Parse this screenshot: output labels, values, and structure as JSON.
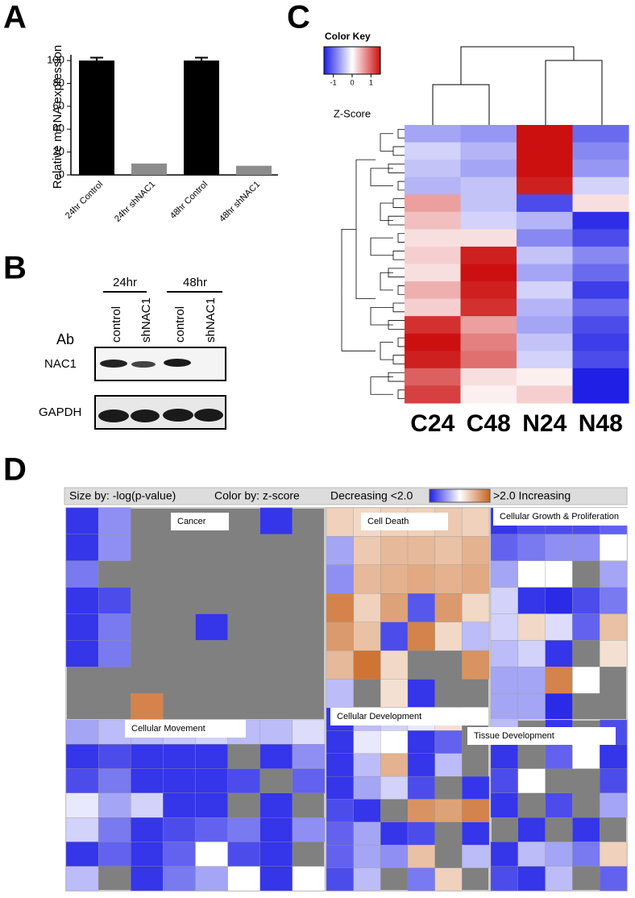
{
  "panel_labels": [
    "A",
    "B",
    "C",
    "D"
  ],
  "blot": {
    "times": [
      "24hr",
      "48hr"
    ],
    "lanes": [
      "control",
      "shNAC1",
      "control",
      "shNAC1"
    ],
    "antibody_header": "Ab",
    "proteins": [
      "NAC1",
      "GAPDH"
    ]
  },
  "chart_data": [
    {
      "type": "bar",
      "ylabel": "Relative mRNA expression",
      "categories": [
        "24hr Control",
        "24hr shNAC1",
        "48hr Control",
        "48hr shNAC1"
      ],
      "values": [
        100,
        10,
        100,
        8
      ],
      "errors": [
        2.5,
        null,
        2.5,
        null
      ],
      "colors": [
        "#000000",
        "#8c8c8c",
        "#000000",
        "#8c8c8c"
      ],
      "ylim": [
        0,
        105
      ],
      "yticks": [
        0,
        20,
        40,
        60,
        80,
        100
      ]
    },
    {
      "type": "heatmap",
      "columns": [
        "C24",
        "C48",
        "N24",
        "N48"
      ],
      "values": [
        [
          -0.6,
          -0.7,
          1.5,
          -1.0
        ],
        [
          -0.3,
          -0.5,
          1.5,
          -0.8
        ],
        [
          -0.4,
          -0.6,
          1.5,
          -0.7
        ],
        [
          -0.5,
          -0.4,
          1.4,
          -0.3
        ],
        [
          0.6,
          -0.4,
          -1.2,
          0.2
        ],
        [
          0.4,
          -0.3,
          -0.5,
          -1.4
        ],
        [
          0.2,
          0.2,
          -0.8,
          -1.2
        ],
        [
          0.3,
          1.4,
          -0.4,
          -0.8
        ],
        [
          0.2,
          1.5,
          -0.6,
          -1.0
        ],
        [
          0.5,
          1.4,
          -0.3,
          -1.3
        ],
        [
          0.3,
          1.3,
          -0.5,
          -1.0
        ],
        [
          1.3,
          0.6,
          -0.6,
          -1.2
        ],
        [
          1.5,
          0.8,
          -0.4,
          -1.3
        ],
        [
          1.4,
          0.9,
          -0.3,
          -1.2
        ],
        [
          1.0,
          0.2,
          0.1,
          -1.5
        ],
        [
          1.2,
          0.1,
          0.3,
          -1.5
        ]
      ],
      "zlim": [
        -1.5,
        1.5
      ],
      "colors": [
        "#1f1fe6",
        "#ffffff",
        "#cc1010"
      ],
      "key_title": "Color Key",
      "key_ticks": [
        -1,
        0,
        1
      ],
      "key_label": "Z-Score"
    },
    {
      "type": "treemap",
      "size_by": "Size by: -log(p-value)",
      "color_by": "Color by: z-score",
      "legend_low": "Decreasing <2.0",
      "legend_high": ">2.0 Increasing",
      "zlim": [
        -2,
        2
      ],
      "colors": [
        "#1f1fe6",
        "#ffffff",
        "#c8641e"
      ],
      "null_color": "#808080",
      "groups": [
        {
          "name": "Cancer",
          "z": [
            [
              -1.8,
              -1.0,
              null,
              null,
              null,
              null,
              -1.8,
              null
            ],
            [
              -1.8,
              -1.0,
              null,
              null,
              null,
              null,
              null,
              null
            ],
            [
              -1.2,
              null,
              null,
              null,
              null,
              null,
              null,
              null
            ],
            [
              -1.8,
              -1.6,
              null,
              null,
              null,
              null,
              null,
              null
            ],
            [
              -1.8,
              -1.2,
              null,
              null,
              -1.8,
              null,
              null,
              null
            ],
            [
              -1.8,
              -1.2,
              null,
              null,
              null,
              null,
              null,
              null
            ],
            [
              null,
              null,
              null,
              null,
              null,
              null,
              null,
              null
            ],
            [
              null,
              null,
              1.6,
              null,
              null,
              null,
              null,
              null
            ]
          ]
        },
        {
          "name": "Cell Death",
          "z": [
            [
              0.6,
              0.5,
              0.6,
              0.6,
              0.7,
              0.6
            ],
            [
              -0.8,
              0.7,
              0.9,
              0.9,
              0.8,
              1.0
            ],
            [
              -1.0,
              0.9,
              1.0,
              1.1,
              1.0,
              1.1
            ],
            [
              1.6,
              0.6,
              1.2,
              -1.5,
              1.3,
              0.5
            ],
            [
              1.3,
              0.8,
              -1.6,
              1.6,
              0.5,
              -0.6
            ],
            [
              0.9,
              1.8,
              0.5,
              null,
              null,
              1.4
            ],
            [
              -0.6,
              null,
              0.4,
              -1.8,
              null,
              null
            ]
          ]
        },
        {
          "name": "Cellular Growth & Proliferation",
          "z": [
            [
              -1.8,
              -1.6,
              -1.6,
              -1.6,
              -1.4
            ],
            [
              -1.4,
              -1.2,
              -1.0,
              -1.0,
              0.0
            ],
            [
              -0.8,
              0.0,
              0.0,
              null,
              -0.8
            ],
            [
              -0.4,
              -1.8,
              -1.9,
              -1.6,
              -1.2
            ],
            [
              -0.4,
              0.5,
              -0.3,
              -1.4,
              0.8
            ],
            [
              -0.6,
              -0.4,
              -1.8,
              null,
              0.4
            ],
            [
              -0.8,
              -0.8,
              1.6,
              0.0,
              null
            ],
            [
              -0.8,
              -0.8,
              -1.9,
              null,
              null
            ]
          ]
        },
        {
          "name": "Cellular Movement",
          "z": [
            [
              -0.8,
              -0.6,
              -0.6,
              -0.5,
              -0.4,
              -0.6,
              -0.6,
              -0.3
            ],
            [
              -1.8,
              -1.6,
              -1.8,
              -1.8,
              -1.8,
              null,
              -1.8,
              -1.0
            ],
            [
              -1.6,
              -1.2,
              -1.8,
              -1.8,
              -1.8,
              -1.6,
              null,
              -1.4
            ],
            [
              -0.2,
              -0.8,
              -0.4,
              -1.8,
              -1.8,
              null,
              -1.8,
              null
            ],
            [
              -0.4,
              -1.2,
              -1.8,
              -1.6,
              -1.4,
              -1.2,
              -1.8,
              -1.0
            ],
            [
              -1.8,
              -1.4,
              -1.8,
              -1.4,
              0.0,
              -1.6,
              -1.8,
              null
            ],
            [
              -0.6,
              null,
              -1.8,
              -1.2,
              -0.8,
              0.0,
              -1.8,
              0.0
            ]
          ]
        },
        {
          "name": "Cellular Development",
          "z": [
            [
              -1.8,
              -0.6,
              -0.4,
              -0.2,
              0.4,
              null
            ],
            [
              -1.8,
              -0.2,
              0.0,
              -1.8,
              -1.4,
              null
            ],
            [
              -1.8,
              -0.6,
              1.0,
              -1.8,
              -0.6,
              null
            ],
            [
              -1.8,
              -0.8,
              -0.4,
              -1.6,
              null,
              -1.8
            ],
            [
              -1.6,
              -1.8,
              null,
              1.4,
              1.2,
              1.6
            ],
            [
              -1.4,
              -0.8,
              -1.8,
              -1.6,
              null,
              -1.8
            ],
            [
              -1.4,
              -0.8,
              -1.0,
              0.8,
              null,
              -0.6
            ],
            [
              -1.6,
              -0.6,
              null,
              -1.2,
              0.6,
              null
            ]
          ]
        },
        {
          "name": "Tissue Development",
          "z": [
            [
              -0.6,
              null,
              -1.8,
              null,
              -1.6
            ],
            [
              -1.8,
              null,
              -1.4,
              0.0,
              -1.8
            ],
            [
              -1.6,
              0.0,
              null,
              null,
              -1.6
            ],
            [
              -1.8,
              null,
              -1.6,
              null,
              -0.8
            ],
            [
              null,
              -1.8,
              null,
              -1.8,
              null
            ],
            [
              -1.8,
              -0.6,
              -0.8,
              -1.2,
              0.6
            ],
            [
              -1.6,
              -1.8,
              -0.6,
              null,
              -1.4
            ]
          ]
        }
      ]
    }
  ]
}
